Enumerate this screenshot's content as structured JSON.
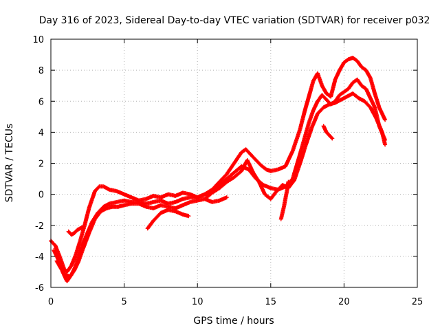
{
  "chart_data": {
    "type": "scatter",
    "title": "Day 316 of 2023, Sidereal Day-to-day VTEC variation (SDTVAR) for receiver p032",
    "xlabel": "GPS time / hours",
    "ylabel": "SDTVAR / TECUs",
    "xlim": [
      0,
      25
    ],
    "ylim": [
      -6,
      10
    ],
    "xticks": [
      0,
      5,
      10,
      15,
      20,
      25
    ],
    "yticks": [
      -6,
      -4,
      -2,
      0,
      2,
      4,
      6,
      8,
      10
    ],
    "grid": true,
    "marker": "+",
    "color": "#ff0000",
    "series": [
      {
        "x": [
          0.0,
          0.3,
          0.6,
          0.9,
          1.1,
          1.4,
          1.7,
          2.0,
          2.3,
          2.6,
          3.0,
          3.3,
          3.6,
          4.0,
          4.5,
          5.0,
          5.5,
          6.0,
          6.5,
          7.0,
          7.5,
          8.0,
          8.5,
          9.0,
          9.5,
          10.0,
          10.5,
          11.0,
          11.5,
          12.0,
          12.5,
          13.0,
          13.3,
          13.6,
          14.0,
          14.3,
          14.7,
          15.0,
          15.5,
          16.0,
          16.5,
          17.0,
          17.3,
          17.6,
          17.9,
          18.2,
          18.5,
          18.8,
          19.1,
          19.4,
          19.7,
          20.0,
          20.3,
          20.6,
          20.9,
          21.2,
          21.5,
          21.8,
          22.1,
          22.4,
          22.8
        ],
        "y": [
          -3.0,
          -3.3,
          -4.0,
          -4.8,
          -5.0,
          -4.6,
          -3.9,
          -3.0,
          -2.0,
          -0.9,
          0.2,
          0.5,
          0.5,
          0.3,
          0.2,
          0.0,
          -0.2,
          -0.4,
          -0.3,
          -0.1,
          -0.2,
          0.0,
          -0.1,
          0.1,
          0.0,
          -0.2,
          0.0,
          0.3,
          0.8,
          1.3,
          2.0,
          2.7,
          2.9,
          2.6,
          2.2,
          1.9,
          1.6,
          1.5,
          1.6,
          1.8,
          2.8,
          4.2,
          5.3,
          6.3,
          7.3,
          7.8,
          7.0,
          6.5,
          6.3,
          7.4,
          8.0,
          8.5,
          8.7,
          8.8,
          8.6,
          8.2,
          8.0,
          7.5,
          6.5,
          5.6,
          4.8
        ]
      },
      {
        "x": [
          0.2,
          0.5,
          0.8,
          1.1,
          1.4,
          1.7,
          2.0,
          2.4,
          2.8,
          3.2,
          3.6,
          4.0,
          4.5,
          5.0,
          5.5,
          6.0,
          6.5,
          7.0,
          7.5,
          8.0,
          8.5,
          9.0,
          9.5,
          10.0,
          10.5,
          11.0,
          11.5,
          12.0,
          12.5,
          13.0,
          13.5,
          14.0,
          14.5,
          15.0,
          15.5,
          16.0,
          16.5,
          17.0,
          17.3,
          17.6,
          17.9,
          18.2,
          18.5,
          18.8,
          19.1,
          19.4,
          19.7,
          20.0,
          20.3,
          20.6,
          20.9,
          21.2,
          21.5,
          21.8,
          22.1,
          22.4,
          22.8
        ],
        "y": [
          -3.6,
          -4.2,
          -5.0,
          -5.6,
          -5.2,
          -4.6,
          -3.7,
          -2.7,
          -1.8,
          -1.2,
          -0.8,
          -0.6,
          -0.5,
          -0.4,
          -0.5,
          -0.5,
          -0.6,
          -0.5,
          -0.4,
          -0.6,
          -0.5,
          -0.3,
          -0.2,
          -0.2,
          0.0,
          0.2,
          0.6,
          1.0,
          1.4,
          1.8,
          1.6,
          1.0,
          0.6,
          0.4,
          0.3,
          0.5,
          1.0,
          2.6,
          3.6,
          4.6,
          5.4,
          6.0,
          6.4,
          6.1,
          5.8,
          6.0,
          6.4,
          6.6,
          6.8,
          7.2,
          7.4,
          7.0,
          6.8,
          6.2,
          5.6,
          4.4,
          3.5
        ]
      },
      {
        "x": [
          0.4,
          0.7,
          1.0,
          1.3,
          1.6,
          1.9,
          2.2,
          2.6,
          3.0,
          3.4,
          3.8,
          4.2,
          4.6,
          5.0,
          5.5,
          6.0,
          6.5,
          7.0,
          7.5,
          8.0,
          8.5,
          9.0,
          9.5,
          10.0,
          10.5,
          11.0,
          11.5,
          12.0,
          12.5,
          13.0,
          13.4,
          13.8,
          14.2,
          14.6,
          15.0,
          15.4,
          15.8,
          16.2,
          16.6,
          17.0,
          17.4,
          17.8,
          18.2,
          18.6,
          19.0,
          19.4,
          19.8,
          20.2,
          20.6,
          21.0,
          21.4,
          21.8,
          22.2,
          22.6,
          22.8
        ],
        "y": [
          -4.3,
          -4.8,
          -5.2,
          -5.3,
          -4.9,
          -4.3,
          -3.5,
          -2.5,
          -1.6,
          -1.1,
          -0.9,
          -0.8,
          -0.8,
          -0.7,
          -0.6,
          -0.6,
          -0.8,
          -0.9,
          -0.7,
          -0.8,
          -0.9,
          -0.7,
          -0.5,
          -0.4,
          -0.3,
          0.1,
          0.4,
          0.8,
          1.1,
          1.5,
          2.2,
          1.4,
          0.8,
          0.0,
          -0.3,
          0.2,
          0.6,
          0.4,
          0.9,
          2.0,
          3.2,
          4.3,
          5.2,
          5.6,
          5.8,
          5.9,
          6.1,
          6.3,
          6.5,
          6.2,
          6.0,
          5.6,
          4.9,
          4.0,
          3.2
        ]
      },
      {
        "x": [
          1.2,
          1.4,
          1.6,
          1.8,
          2.0,
          2.2
        ],
        "y": [
          -2.4,
          -2.6,
          -2.5,
          -2.3,
          -2.2,
          -2.1
        ]
      },
      {
        "x": [
          6.6,
          7.0,
          7.5,
          8.0,
          8.5,
          9.0,
          9.4
        ],
        "y": [
          -2.2,
          -1.7,
          -1.2,
          -1.0,
          -1.1,
          -1.3,
          -1.4
        ]
      },
      {
        "x": [
          10.5,
          11.0,
          11.5,
          12.0
        ],
        "y": [
          -0.3,
          -0.5,
          -0.4,
          -0.2
        ]
      },
      {
        "x": [
          15.7,
          15.9,
          16.1,
          16.2
        ],
        "y": [
          -1.6,
          -0.8,
          0.2,
          0.8
        ]
      },
      {
        "x": [
          18.6,
          18.8,
          19.0,
          19.2
        ],
        "y": [
          4.4,
          4.0,
          3.8,
          3.6
        ]
      }
    ]
  }
}
